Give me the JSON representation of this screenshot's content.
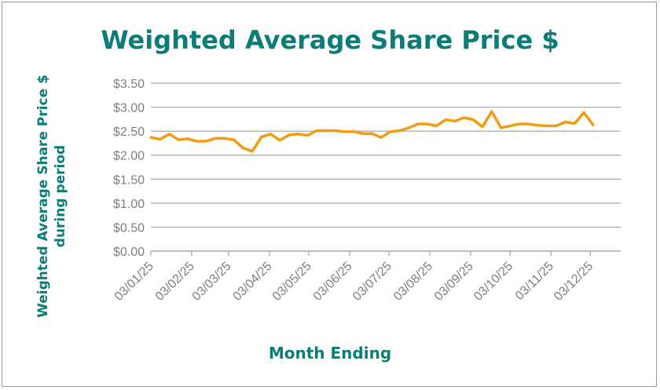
{
  "chart_data": {
    "type": "line",
    "title": "Weighted Average Share Price $",
    "xlabel": "Month Ending",
    "ylabel_lines": [
      "Weighted Average Share Price $",
      "during period"
    ],
    "ylim": [
      0,
      3.5
    ],
    "yticks": [
      0,
      0.5,
      1.0,
      1.5,
      2.0,
      2.5,
      3.0,
      3.5
    ],
    "ytick_labels": [
      "$0.00",
      "$0.50",
      "$1.00",
      "$1.50",
      "$2.00",
      "$2.50",
      "$3.00",
      "$3.50"
    ],
    "grid": "horizontal",
    "line_color": "#f39c12",
    "xlim": [
      "2025-01-03",
      "2025-12-26"
    ],
    "xtick_labels": [
      "03/01/25",
      "03/02/25",
      "03/03/25",
      "03/04/25",
      "03/05/25",
      "03/06/25",
      "03/07/25",
      "03/08/25",
      "03/09/25",
      "03/10/25",
      "03/11/25",
      "03/12/25"
    ],
    "xtick_dates": [
      "2025-01-03",
      "2025-02-03",
      "2025-03-03",
      "2025-04-03",
      "2025-05-03",
      "2025-06-03",
      "2025-07-03",
      "2025-08-03",
      "2025-09-03",
      "2025-10-03",
      "2025-11-03",
      "2025-12-03"
    ],
    "series": [
      {
        "x": [
          "2025-01-03",
          "2025-01-10",
          "2025-01-17",
          "2025-01-24",
          "2025-01-31",
          "2025-02-07",
          "2025-02-14",
          "2025-02-21",
          "2025-02-28",
          "2025-03-07",
          "2025-03-14",
          "2025-03-21",
          "2025-03-28",
          "2025-04-04",
          "2025-04-11",
          "2025-04-18",
          "2025-04-25",
          "2025-05-02",
          "2025-05-09",
          "2025-05-16",
          "2025-05-23",
          "2025-05-30",
          "2025-06-06",
          "2025-06-13",
          "2025-06-20",
          "2025-06-27",
          "2025-07-04",
          "2025-07-11",
          "2025-07-18",
          "2025-07-25",
          "2025-08-01",
          "2025-08-08",
          "2025-08-15",
          "2025-08-22",
          "2025-08-29",
          "2025-09-05",
          "2025-09-12",
          "2025-09-19",
          "2025-09-26",
          "2025-10-03",
          "2025-10-10",
          "2025-10-17",
          "2025-10-24",
          "2025-10-31",
          "2025-11-07",
          "2025-11-14",
          "2025-11-21",
          "2025-11-28",
          "2025-12-05"
        ],
        "values": [
          2.37,
          2.33,
          2.44,
          2.32,
          2.34,
          2.29,
          2.29,
          2.35,
          2.35,
          2.32,
          2.15,
          2.08,
          2.38,
          2.44,
          2.31,
          2.42,
          2.44,
          2.41,
          2.51,
          2.51,
          2.51,
          2.49,
          2.49,
          2.45,
          2.45,
          2.37,
          2.49,
          2.51,
          2.57,
          2.65,
          2.65,
          2.61,
          2.74,
          2.71,
          2.78,
          2.74,
          2.59,
          2.91,
          2.57,
          2.61,
          2.65,
          2.65,
          2.62,
          2.61,
          2.61,
          2.69,
          2.66,
          2.89,
          2.63
        ]
      }
    ]
  }
}
